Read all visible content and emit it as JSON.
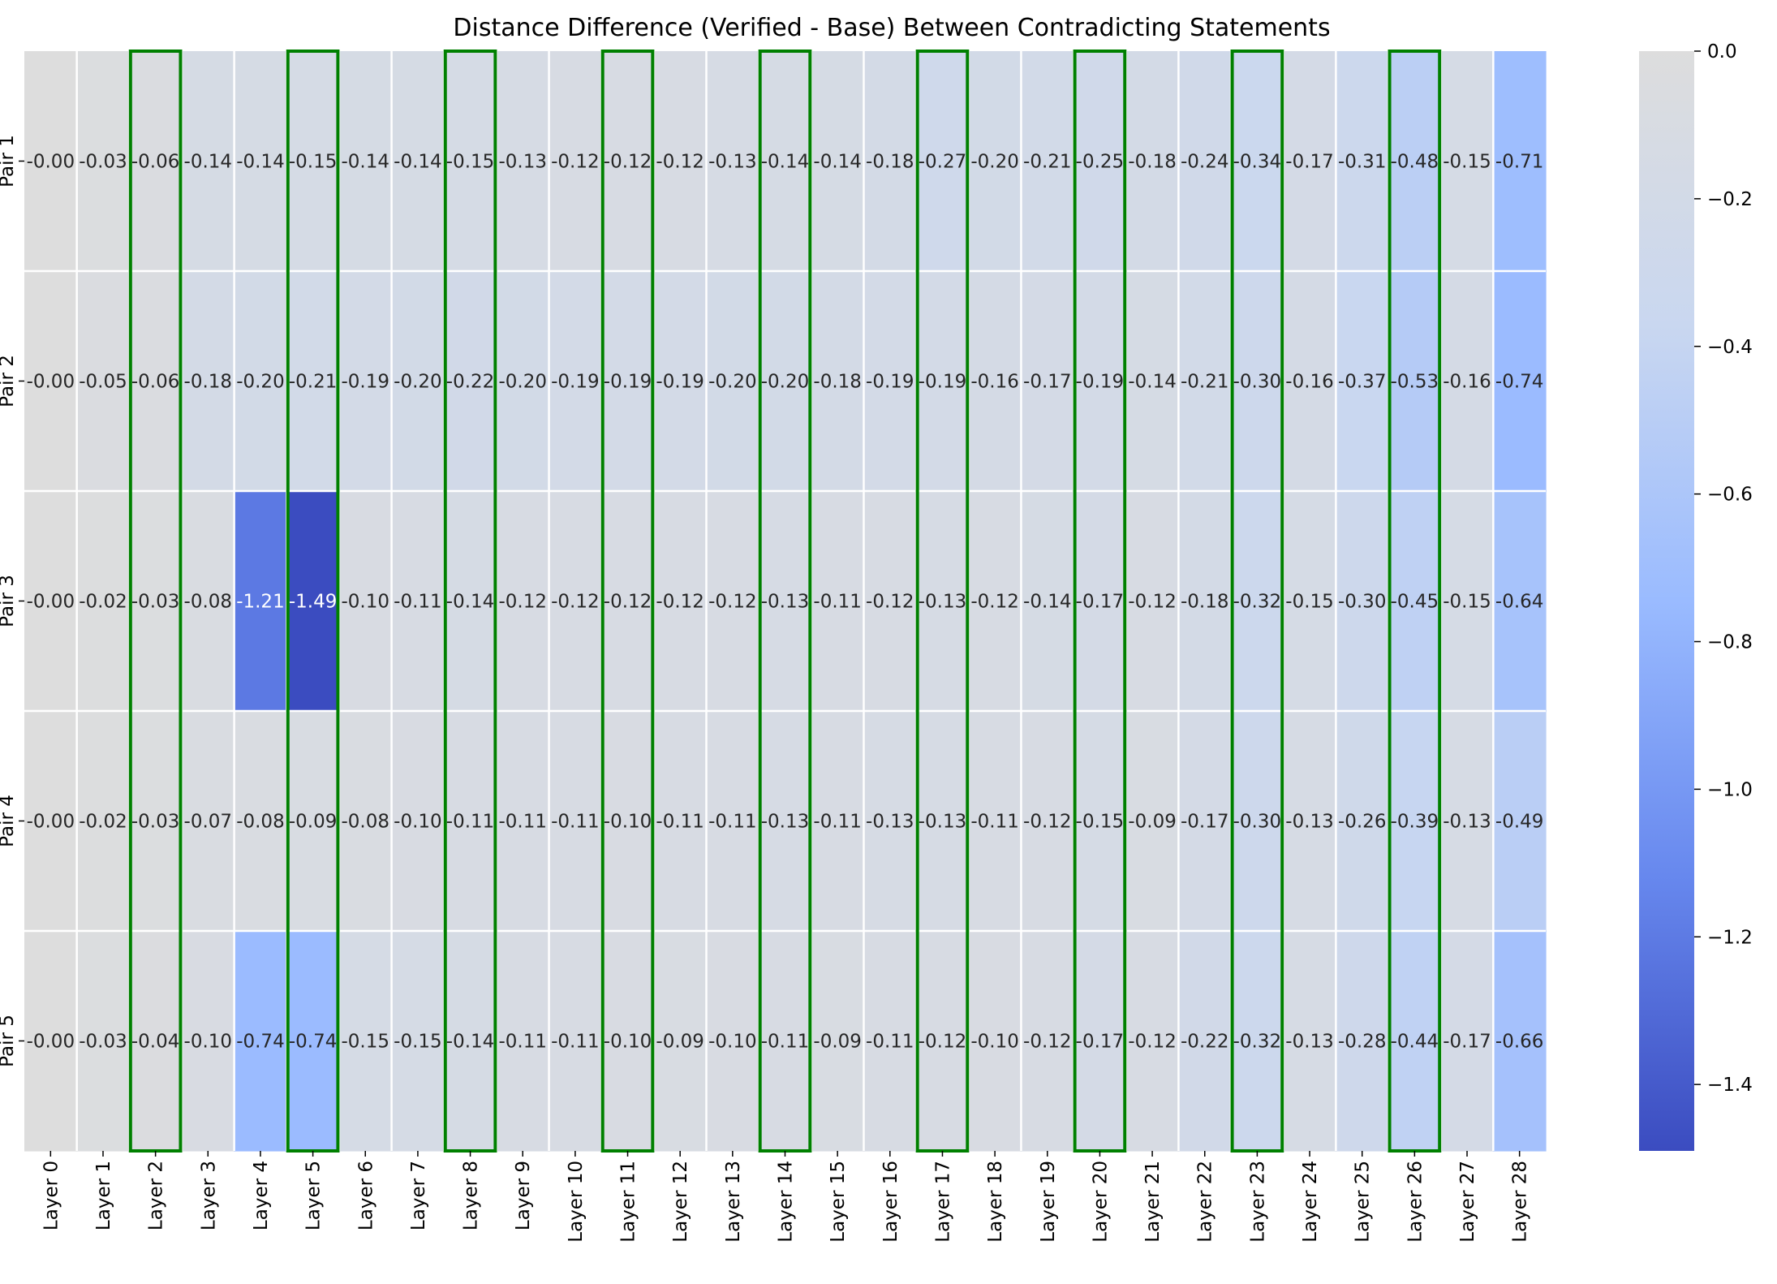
{
  "chart_data": {
    "type": "heatmap",
    "title": "Distance Difference (Verified - Base) Between Contradicting Statements",
    "xlabel": "",
    "ylabel": "",
    "x_categories": [
      "Layer 0",
      "Layer 1",
      "Layer 2",
      "Layer 3",
      "Layer 4",
      "Layer 5",
      "Layer 6",
      "Layer 7",
      "Layer 8",
      "Layer 9",
      "Layer 10",
      "Layer 11",
      "Layer 12",
      "Layer 13",
      "Layer 14",
      "Layer 15",
      "Layer 16",
      "Layer 17",
      "Layer 18",
      "Layer 19",
      "Layer 20",
      "Layer 21",
      "Layer 22",
      "Layer 23",
      "Layer 24",
      "Layer 25",
      "Layer 26",
      "Layer 27",
      "Layer 28"
    ],
    "y_categories": [
      "Pair 1",
      "Pair 2",
      "Pair 3",
      "Pair 4",
      "Pair 5"
    ],
    "values": [
      [
        -0.0,
        -0.03,
        -0.06,
        -0.14,
        -0.14,
        -0.15,
        -0.14,
        -0.14,
        -0.15,
        -0.13,
        -0.12,
        -0.12,
        -0.12,
        -0.13,
        -0.14,
        -0.14,
        -0.18,
        -0.27,
        -0.2,
        -0.21,
        -0.25,
        -0.18,
        -0.24,
        -0.34,
        -0.17,
        -0.31,
        -0.48,
        -0.15,
        -0.71
      ],
      [
        -0.0,
        -0.05,
        -0.06,
        -0.18,
        -0.2,
        -0.21,
        -0.19,
        -0.2,
        -0.22,
        -0.2,
        -0.19,
        -0.19,
        -0.19,
        -0.2,
        -0.2,
        -0.18,
        -0.19,
        -0.19,
        -0.16,
        -0.17,
        -0.19,
        -0.14,
        -0.21,
        -0.3,
        -0.16,
        -0.37,
        -0.53,
        -0.16,
        -0.74
      ],
      [
        -0.0,
        -0.02,
        -0.03,
        -0.08,
        -1.21,
        -1.49,
        -0.1,
        -0.11,
        -0.14,
        -0.12,
        -0.12,
        -0.12,
        -0.12,
        -0.12,
        -0.13,
        -0.11,
        -0.12,
        -0.13,
        -0.12,
        -0.14,
        -0.17,
        -0.12,
        -0.18,
        -0.32,
        -0.15,
        -0.3,
        -0.45,
        -0.15,
        -0.64
      ],
      [
        -0.0,
        -0.02,
        -0.03,
        -0.07,
        -0.08,
        -0.09,
        -0.08,
        -0.1,
        -0.11,
        -0.11,
        -0.11,
        -0.1,
        -0.11,
        -0.11,
        -0.13,
        -0.11,
        -0.13,
        -0.13,
        -0.11,
        -0.12,
        -0.15,
        -0.09,
        -0.17,
        -0.3,
        -0.13,
        -0.26,
        -0.39,
        -0.13,
        -0.49
      ],
      [
        -0.0,
        -0.03,
        -0.04,
        -0.1,
        -0.74,
        -0.74,
        -0.15,
        -0.15,
        -0.14,
        -0.11,
        -0.11,
        -0.1,
        -0.09,
        -0.1,
        -0.11,
        -0.09,
        -0.11,
        -0.12,
        -0.1,
        -0.12,
        -0.17,
        -0.12,
        -0.22,
        -0.32,
        -0.13,
        -0.28,
        -0.44,
        -0.17,
        -0.66
      ]
    ],
    "value_labels": [
      [
        "-0.00",
        "-0.03",
        "-0.06",
        "-0.14",
        "-0.14",
        "-0.15",
        "-0.14",
        "-0.14",
        "-0.15",
        "-0.13",
        "-0.12",
        "-0.12",
        "-0.12",
        "-0.13",
        "-0.14",
        "-0.14",
        "-0.18",
        "-0.27",
        "-0.20",
        "-0.21",
        "-0.25",
        "-0.18",
        "-0.24",
        "-0.34",
        "-0.17",
        "-0.31",
        "-0.48",
        "-0.15",
        "-0.71"
      ],
      [
        "-0.00",
        "-0.05",
        "-0.06",
        "-0.18",
        "-0.20",
        "-0.21",
        "-0.19",
        "-0.20",
        "-0.22",
        "-0.20",
        "-0.19",
        "-0.19",
        "-0.19",
        "-0.20",
        "-0.20",
        "-0.18",
        "-0.19",
        "-0.19",
        "-0.16",
        "-0.17",
        "-0.19",
        "-0.14",
        "-0.21",
        "-0.30",
        "-0.16",
        "-0.37",
        "-0.53",
        "-0.16",
        "-0.74"
      ],
      [
        "-0.00",
        "-0.02",
        "-0.03",
        "-0.08",
        "-1.21",
        "-1.49",
        "-0.10",
        "-0.11",
        "-0.14",
        "-0.12",
        "-0.12",
        "-0.12",
        "-0.12",
        "-0.12",
        "-0.13",
        "-0.11",
        "-0.12",
        "-0.13",
        "-0.12",
        "-0.14",
        "-0.17",
        "-0.12",
        "-0.18",
        "-0.32",
        "-0.15",
        "-0.30",
        "-0.45",
        "-0.15",
        "-0.64"
      ],
      [
        "-0.00",
        "-0.02",
        "-0.03",
        "-0.07",
        "-0.08",
        "-0.09",
        "-0.08",
        "-0.10",
        "-0.11",
        "-0.11",
        "-0.11",
        "-0.10",
        "-0.11",
        "-0.11",
        "-0.13",
        "-0.11",
        "-0.13",
        "-0.13",
        "-0.11",
        "-0.12",
        "-0.15",
        "-0.09",
        "-0.17",
        "-0.30",
        "-0.13",
        "-0.26",
        "-0.39",
        "-0.13",
        "-0.49"
      ],
      [
        "-0.00",
        "-0.03",
        "-0.04",
        "-0.10",
        "-0.74",
        "-0.74",
        "-0.15",
        "-0.15",
        "-0.14",
        "-0.11",
        "-0.11",
        "-0.10",
        "-0.09",
        "-0.10",
        "-0.11",
        "-0.09",
        "-0.11",
        "-0.12",
        "-0.10",
        "-0.12",
        "-0.17",
        "-0.12",
        "-0.22",
        "-0.32",
        "-0.13",
        "-0.28",
        "-0.44",
        "-0.17",
        "-0.66"
      ]
    ],
    "highlighted_columns": [
      2,
      5,
      8,
      11,
      14,
      17,
      20,
      23,
      26
    ],
    "highlight_color": "#008000",
    "colorbar": {
      "range": [
        -1.49,
        0.0
      ],
      "ticks": [
        0.0,
        -0.2,
        -0.4,
        -0.6,
        -0.8,
        -1.0,
        -1.2,
        -1.4
      ],
      "tick_labels": [
        "0.0",
        "−0.2",
        "−0.4",
        "−0.6",
        "−0.8",
        "−1.0",
        "−1.2",
        "−1.4"
      ]
    },
    "colormap": [
      "#3b4cc0",
      "#6788ee",
      "#9abbff",
      "#c9d7f0",
      "#dddddd"
    ],
    "grid": true,
    "grid_color": "#ffffff"
  }
}
